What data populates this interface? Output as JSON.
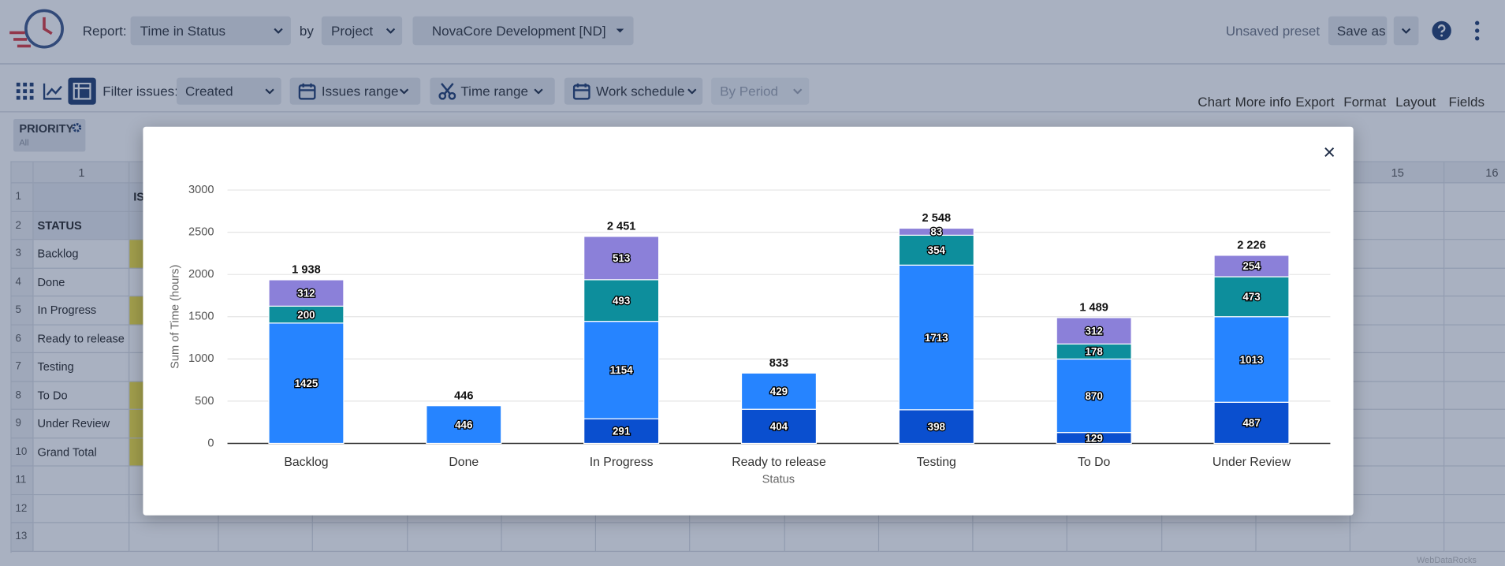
{
  "toolbar": {
    "report_label": "Report:",
    "report": "Time in Status",
    "by_label": "by",
    "group_by": "Project",
    "project": "NovaCore Development [ND]",
    "preset": "Unsaved preset",
    "save_as": "Save as"
  },
  "filter_bar": {
    "label": "Filter issues:",
    "filter": "Created",
    "issues_range": "Issues range",
    "time_range": "Time range",
    "work_schedule": "Work schedule",
    "by_period": "By Period"
  },
  "tools": [
    "Chart",
    "More info",
    "Export",
    "Format",
    "Layout",
    "Fields"
  ],
  "grid": {
    "filter": {
      "title": "PRIORITY",
      "value": "All"
    },
    "column_numbers": [
      1,
      15,
      16
    ],
    "row_numbers": [
      1,
      2,
      3,
      4,
      5,
      6,
      7,
      8,
      9,
      10,
      11,
      12,
      13
    ],
    "column_group": "IS",
    "row_header": "STATUS",
    "rows": [
      "Backlog",
      "Done",
      "In Progress",
      "Ready to release",
      "Testing",
      "To Do",
      "Under Review",
      "Grand Total"
    ]
  },
  "watermark": "WebDataRocks",
  "chart_data": {
    "type": "bar",
    "stacked": true,
    "categories": [
      "Backlog",
      "Done",
      "In Progress",
      "Ready to release",
      "Testing",
      "To Do",
      "Under Review"
    ],
    "series": [
      {
        "color": "#0a4fcf",
        "values": [
          null,
          null,
          291,
          404,
          398,
          129,
          487
        ]
      },
      {
        "color": "#2684ff",
        "values": [
          1425,
          446,
          1154,
          429,
          1713,
          870,
          1013
        ]
      },
      {
        "color": "#0d8e9c",
        "values": [
          200,
          null,
          493,
          null,
          354,
          178,
          473
        ]
      },
      {
        "color": "#8b80d9",
        "values": [
          312,
          null,
          513,
          null,
          83,
          312,
          254
        ]
      }
    ],
    "totals": {
      "values": [
        1938,
        446,
        2451,
        833,
        2548,
        1489,
        2226
      ],
      "value_labels": [
        "1 938",
        "446",
        "2 451",
        "833",
        "2 548",
        "1 489",
        "2 226"
      ]
    },
    "xlabel": "Status",
    "ylabel": "Sum of Time (hours)",
    "ylim": [
      0,
      3000
    ],
    "yticks": [
      0,
      500,
      1000,
      1500,
      2000,
      2500,
      3000
    ],
    "grid": true
  }
}
